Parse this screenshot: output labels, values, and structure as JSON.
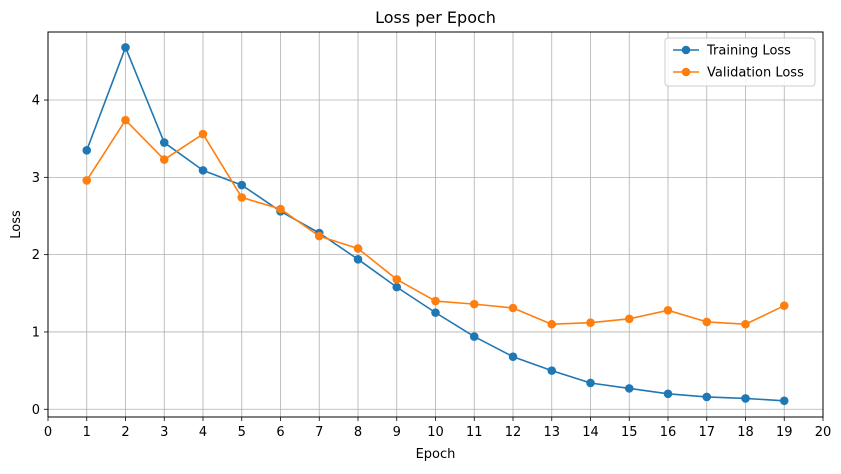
{
  "chart_data": {
    "type": "line",
    "title": "Loss per Epoch",
    "xlabel": "Epoch",
    "ylabel": "Loss",
    "xlim": [
      0,
      20
    ],
    "ylim": [
      -0.1,
      4.88
    ],
    "x_ticks": [
      0,
      1,
      2,
      3,
      4,
      5,
      6,
      7,
      8,
      9,
      10,
      11,
      12,
      13,
      14,
      15,
      16,
      17,
      18,
      19,
      20
    ],
    "y_ticks": [
      0,
      1,
      2,
      3,
      4
    ],
    "grid": true,
    "legend_position": "top-right",
    "x": [
      1,
      2,
      3,
      4,
      5,
      6,
      7,
      8,
      9,
      10,
      11,
      12,
      13,
      14,
      15,
      16,
      17,
      18,
      19
    ],
    "series": [
      {
        "name": "Training Loss",
        "color": "#1f77b4",
        "marker": "circle",
        "values": [
          3.35,
          4.68,
          3.45,
          3.09,
          2.9,
          2.56,
          2.28,
          1.94,
          1.58,
          1.25,
          0.94,
          0.68,
          0.5,
          0.34,
          0.27,
          0.2,
          0.16,
          0.14,
          0.11
        ]
      },
      {
        "name": "Validation Loss",
        "color": "#ff7f0e",
        "marker": "circle",
        "values": [
          2.96,
          3.74,
          3.23,
          3.56,
          2.74,
          2.59,
          2.24,
          2.08,
          1.68,
          1.4,
          1.36,
          1.31,
          1.1,
          1.12,
          1.17,
          1.28,
          1.13,
          1.1,
          1.34
        ]
      }
    ]
  }
}
